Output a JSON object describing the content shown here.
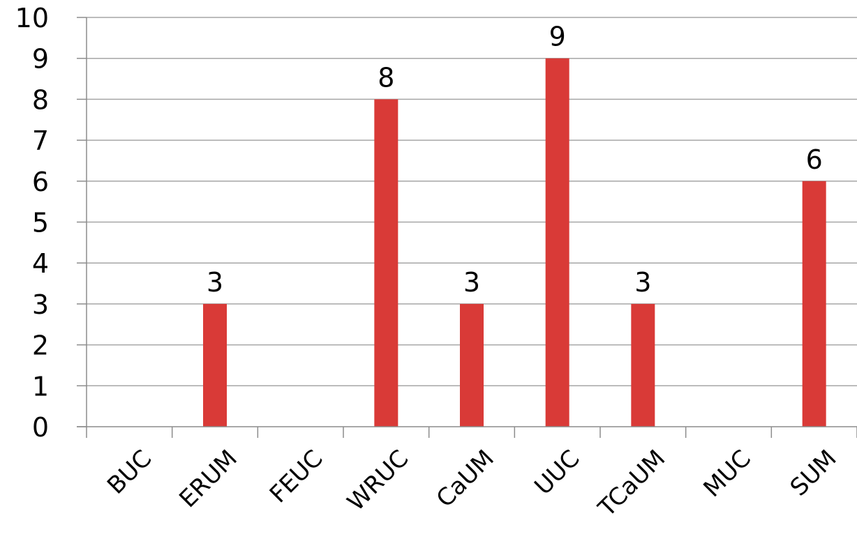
{
  "chart_data": {
    "type": "bar",
    "categories": [
      "BUC",
      "ERUM",
      "FEUC",
      "WRUC",
      "CaUM",
      "UUC",
      "TCaUM",
      "MUC",
      "SUM"
    ],
    "series": [
      {
        "values": [
          0,
          3,
          0,
          8,
          3,
          9,
          3,
          0,
          6
        ]
      }
    ],
    "data_labels": [
      "",
      "3",
      "",
      "8",
      "3",
      "9",
      "3",
      "",
      "6"
    ],
    "y_ticks": [
      "0",
      "1",
      "2",
      "3",
      "4",
      "5",
      "6",
      "7",
      "8",
      "9",
      "10"
    ],
    "ylim": [
      0,
      10
    ],
    "grid": true,
    "legend": "none",
    "title": "",
    "xlabel": "",
    "ylabel": "",
    "colors": {
      "bar": "#d93a37",
      "grid": "#a6a6a6",
      "axis": "#8c8c8c",
      "text": "#000000"
    }
  }
}
